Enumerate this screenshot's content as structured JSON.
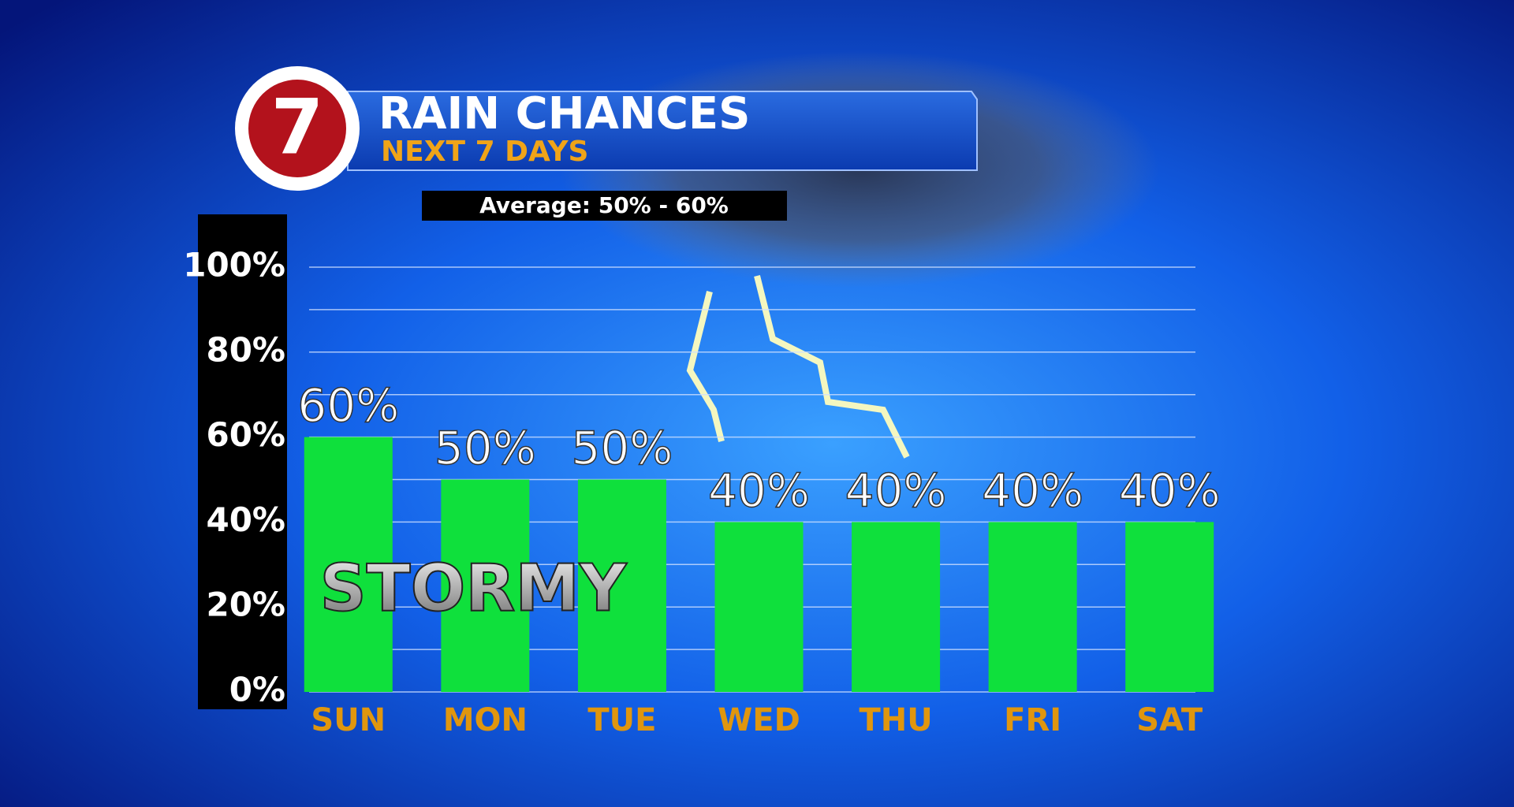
{
  "chart_data": {
    "type": "bar",
    "logo": "7",
    "title": "RAIN CHANCES",
    "subtitle": "NEXT 7 DAYS",
    "annotation": "Average: 50% - 60%",
    "overlay_label": "STORMY",
    "categories": [
      "SUN",
      "MON",
      "TUE",
      "WED",
      "THU",
      "FRI",
      "SAT"
    ],
    "values": [
      60,
      50,
      50,
      40,
      40,
      40,
      40
    ],
    "value_labels": [
      "60%",
      "50%",
      "50%",
      "40%",
      "40%",
      "40%",
      "40%"
    ],
    "color": "#0fe03c",
    "ylim": [
      0,
      100
    ],
    "yticks": [
      {
        "value": 0,
        "label": "0%"
      },
      {
        "value": 20,
        "label": "20%"
      },
      {
        "value": 40,
        "label": "40%"
      },
      {
        "value": 60,
        "label": "60%"
      },
      {
        "value": 80,
        "label": "80%"
      },
      {
        "value": 100,
        "label": "100%"
      }
    ],
    "minor_yticks": [
      10,
      30,
      50,
      70,
      90
    ],
    "grid": true
  }
}
